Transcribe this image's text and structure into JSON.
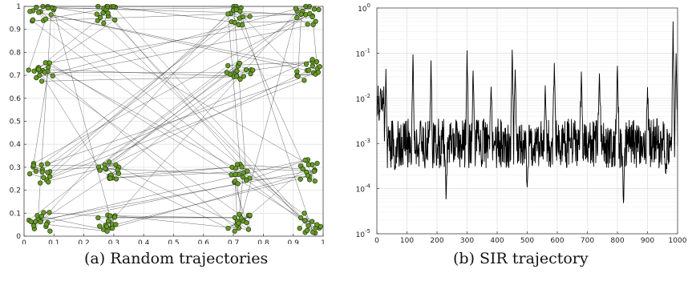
{
  "captions": {
    "a": "(a) Random trajectories",
    "b": "(b) SIR trajectory"
  },
  "chart_data": [
    {
      "type": "scatter",
      "caption": "(a) Random trajectories",
      "xlim": [
        0,
        1
      ],
      "ylim": [
        0,
        1
      ],
      "grid": true,
      "x_ticks": [
        "0",
        "0.1",
        "0.2",
        "0.3",
        "0.4",
        "0.5",
        "0.6",
        "0.7",
        "0.8",
        "0.9",
        "1"
      ],
      "y_ticks": [
        "0",
        "0.1",
        "0.2",
        "0.3",
        "0.4",
        "0.5",
        "0.6",
        "0.7",
        "0.8",
        "0.9",
        "1"
      ],
      "cluster_centers": [
        [
          0.06,
          0.97
        ],
        [
          0.28,
          0.97
        ],
        [
          0.72,
          0.97
        ],
        [
          0.95,
          0.97
        ],
        [
          0.06,
          0.72
        ],
        [
          0.72,
          0.72
        ],
        [
          0.95,
          0.72
        ],
        [
          0.06,
          0.28
        ],
        [
          0.28,
          0.28
        ],
        [
          0.72,
          0.28
        ],
        [
          0.95,
          0.28
        ],
        [
          0.06,
          0.06
        ],
        [
          0.28,
          0.06
        ],
        [
          0.72,
          0.06
        ],
        [
          0.95,
          0.06
        ]
      ],
      "point_color": "#6a9a2a",
      "line_color": "#222222"
    },
    {
      "type": "line",
      "caption": "(b) SIR trajectory",
      "xlim": [
        0,
        1000
      ],
      "ylim": [
        1e-05,
        1
      ],
      "yscale": "log",
      "grid": true,
      "x_ticks": [
        "0",
        "100",
        "200",
        "300",
        "400",
        "500",
        "600",
        "700",
        "800",
        "900",
        "1000"
      ],
      "y_ticks": [
        {
          "base": "10",
          "exp": "-5"
        },
        {
          "base": "10",
          "exp": "-4"
        },
        {
          "base": "10",
          "exp": "-3"
        },
        {
          "base": "10",
          "exp": "-2"
        },
        {
          "base": "10",
          "exp": "-1"
        },
        {
          "base": "10",
          "exp": "0"
        }
      ],
      "baseline": 0.001,
      "peaks": [
        [
          10,
          0.03
        ],
        [
          30,
          0.04
        ],
        [
          60,
          0.0003
        ],
        [
          120,
          0.1
        ],
        [
          180,
          0.06
        ],
        [
          230,
          5e-05
        ],
        [
          300,
          0.12
        ],
        [
          320,
          0.04
        ],
        [
          380,
          0.02
        ],
        [
          450,
          0.11
        ],
        [
          460,
          0.04
        ],
        [
          500,
          0.0001
        ],
        [
          560,
          0.02
        ],
        [
          590,
          0.05
        ],
        [
          680,
          0.04
        ],
        [
          740,
          0.04
        ],
        [
          800,
          0.06
        ],
        [
          820,
          4e-05
        ],
        [
          900,
          0.02
        ],
        [
          960,
          0.0002
        ],
        [
          985,
          0.4
        ],
        [
          995,
          0.08
        ]
      ],
      "line_color": "#000000"
    }
  ]
}
